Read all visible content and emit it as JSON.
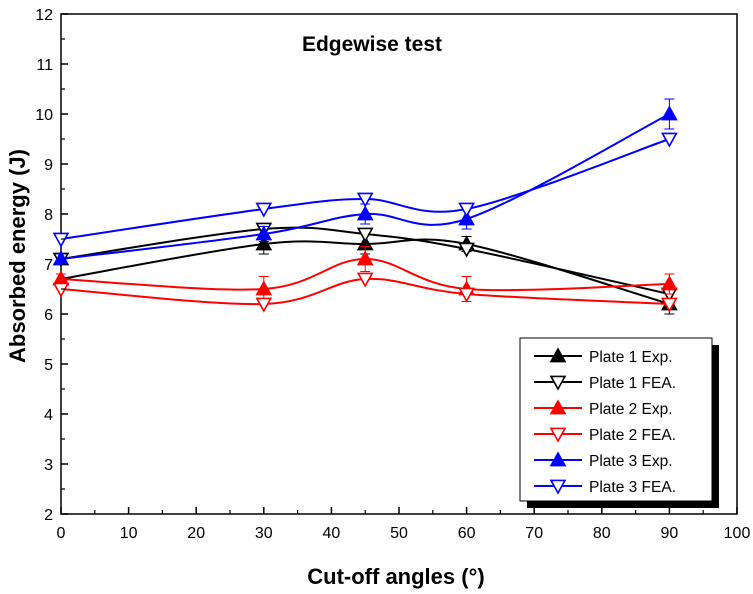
{
  "chart_data": {
    "type": "line",
    "title": "Edgewise test",
    "xlabel": "Cut-off angles (°)",
    "ylabel": "Absorbed energy (J)",
    "xlim": [
      0,
      100
    ],
    "ylim": [
      2,
      12
    ],
    "x_ticks": [
      0,
      10,
      20,
      30,
      40,
      50,
      60,
      70,
      80,
      90,
      100
    ],
    "y_ticks": [
      2,
      3,
      4,
      5,
      6,
      7,
      8,
      9,
      10,
      11,
      12
    ],
    "x": [
      0,
      30,
      45,
      60,
      90
    ],
    "grid": false,
    "legend_position": "bottom-right",
    "series": [
      {
        "name": "Plate 1 Exp.",
        "values": [
          6.7,
          7.4,
          7.4,
          7.4,
          6.2
        ],
        "errors": [
          0.1,
          0.2,
          0.2,
          0.15,
          0.2
        ],
        "color": "#000000",
        "marker": "triangle-up",
        "filled": true
      },
      {
        "name": "Plate 1 FEA.",
        "values": [
          7.1,
          7.7,
          7.6,
          7.3,
          6.4
        ],
        "errors": [
          0,
          0,
          0,
          0,
          0
        ],
        "color": "#000000",
        "marker": "triangle-down",
        "filled": false
      },
      {
        "name": "Plate 2 Exp.",
        "values": [
          6.7,
          6.5,
          7.1,
          6.5,
          6.6
        ],
        "errors": [
          0.1,
          0.25,
          0.25,
          0.25,
          0.2
        ],
        "color": "#ff0000",
        "marker": "triangle-up",
        "filled": true
      },
      {
        "name": "Plate 2 FEA.",
        "values": [
          6.5,
          6.2,
          6.7,
          6.4,
          6.2
        ],
        "errors": [
          0,
          0,
          0,
          0,
          0
        ],
        "color": "#ff0000",
        "marker": "triangle-down",
        "filled": false
      },
      {
        "name": "Plate 3 Exp.",
        "values": [
          7.1,
          7.6,
          8.0,
          7.9,
          10.0
        ],
        "errors": [
          0.1,
          0.15,
          0.2,
          0.2,
          0.3
        ],
        "color": "#0000ff",
        "marker": "triangle-up",
        "filled": true
      },
      {
        "name": "Plate 3 FEA.",
        "values": [
          7.5,
          8.1,
          8.3,
          8.1,
          9.5
        ],
        "errors": [
          0,
          0,
          0,
          0,
          0
        ],
        "color": "#0000ff",
        "marker": "triangle-down",
        "filled": false
      }
    ]
  }
}
